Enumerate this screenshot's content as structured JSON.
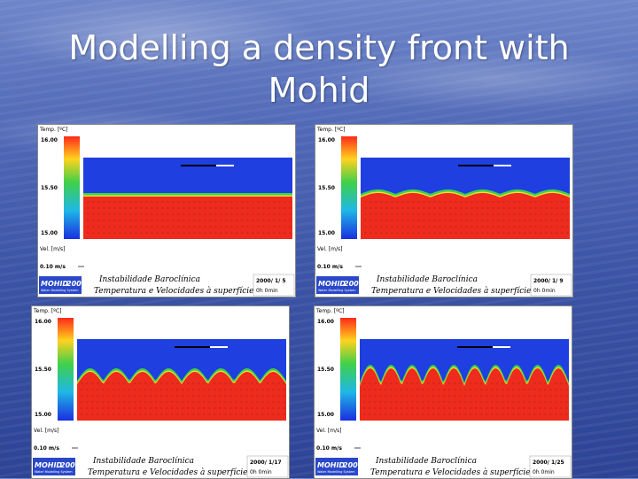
{
  "slide": {
    "title": "Modelling a density front with Mohid"
  },
  "panels": [
    {
      "temp_label": "Temp. [ºC]",
      "scale_ticks": [
        "16.00",
        "15.50",
        "15.00"
      ],
      "vel_label": "Vel. [m/s]",
      "vel_value": "0.10 m/s",
      "logo_text": "MOHID",
      "logo_year": "2000",
      "logo_sub": "Water Modelling System",
      "caption_line1": "Instabilidade Baroclínica",
      "caption_line2": "Temperatura e Velocidades à superfície",
      "date": "2000/ 1/ 5",
      "time": "0h 0min",
      "stage": 0
    },
    {
      "temp_label": "Temp. [ºC]",
      "scale_ticks": [
        "16.00",
        "15.50",
        "15.00"
      ],
      "vel_label": "Vel. [m/s]",
      "vel_value": "0.10 m/s",
      "logo_text": "MOHID",
      "logo_year": "2000",
      "logo_sub": "Water Modelling System",
      "caption_line1": "Instabilidade Baroclínica",
      "caption_line2": "Temperatura e Velocidades à superfície",
      "date": "2000/ 1/ 9",
      "time": "0h 0min",
      "stage": 1
    },
    {
      "temp_label": "Temp. [ºC]",
      "scale_ticks": [
        "16.00",
        "15.50",
        "15.00"
      ],
      "vel_label": "Vel. [m/s]",
      "vel_value": "0.10 m/s",
      "logo_text": "MOHID",
      "logo_year": "2000",
      "logo_sub": "Water Modelling System",
      "caption_line1": "Instabilidade Baroclínica",
      "caption_line2": "Temperatura e Velocidades à superfície",
      "date": "2000/ 1/17",
      "time": "0h 0min",
      "stage": 2
    },
    {
      "temp_label": "Temp. [ºC]",
      "scale_ticks": [
        "16.00",
        "15.50",
        "15.00"
      ],
      "vel_label": "Vel. [m/s]",
      "vel_value": "0.10 m/s",
      "logo_text": "MOHID",
      "logo_year": "2000",
      "logo_sub": "Water Modelling System",
      "caption_line1": "Instabilidade Baroclínica",
      "caption_line2": "Temperatura e Velocidades à superfície",
      "date": "2000/ 1/25",
      "time": "0h 0min",
      "stage": 3
    }
  ],
  "colors": {
    "cold_water": "#1f3fe0",
    "warm_water": "#ee2b1c",
    "front_green": "#3fd04a",
    "front_yellow": "#e8e030",
    "mohid_logo": "#2a48c8"
  }
}
